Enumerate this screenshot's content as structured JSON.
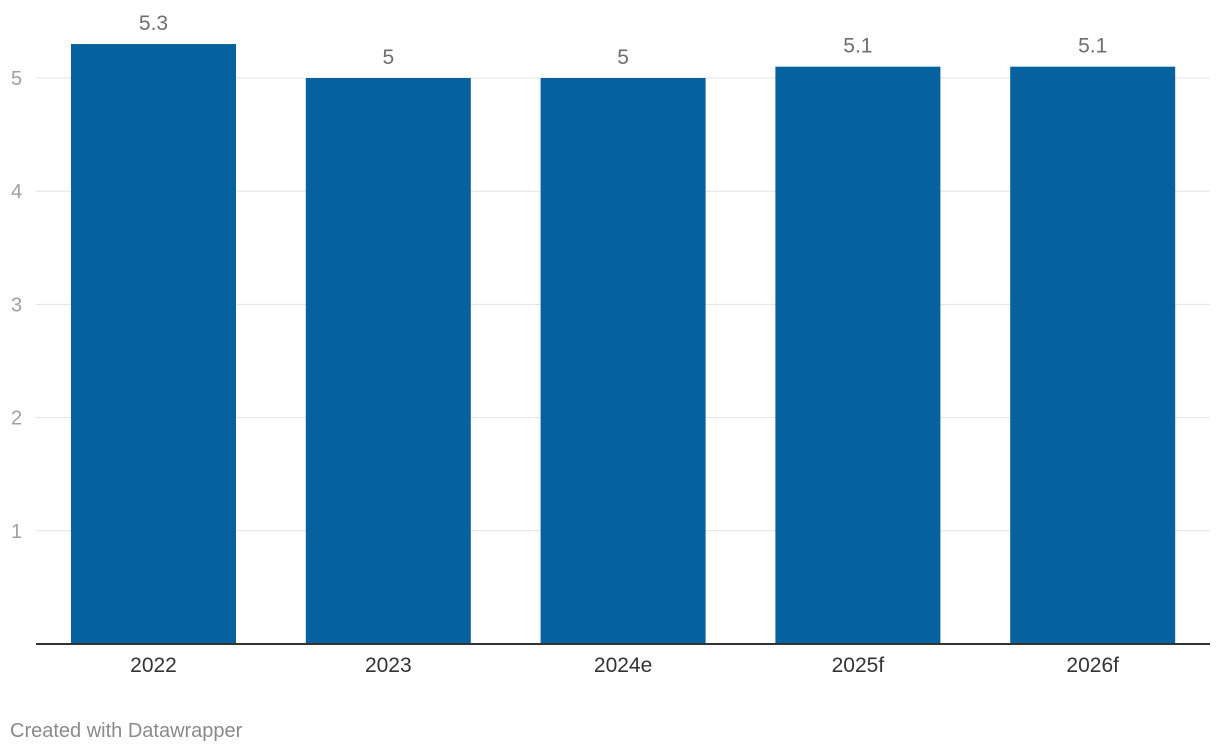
{
  "chart_data": {
    "type": "bar",
    "categories": [
      "2022",
      "2023",
      "2024e",
      "2025f",
      "2026f"
    ],
    "values": [
      5.3,
      5,
      5,
      5.1,
      5.1
    ],
    "value_labels": [
      "5.3",
      "5",
      "5",
      "5.1",
      "5.1"
    ],
    "title": "",
    "xlabel": "",
    "ylabel": "",
    "ylim": [
      0,
      5.3
    ],
    "yticks": [
      1,
      2,
      3,
      4,
      5
    ],
    "grid": true,
    "legend": "none",
    "bar_color": "#05629e"
  },
  "footer": {
    "credit": "Created with Datawrapper"
  },
  "colors": {
    "grid": "#e3e3e3",
    "axis": "#333333",
    "tick_label": "#a0a0a0",
    "value_label": "#6e6e6e",
    "category_label": "#333333"
  }
}
